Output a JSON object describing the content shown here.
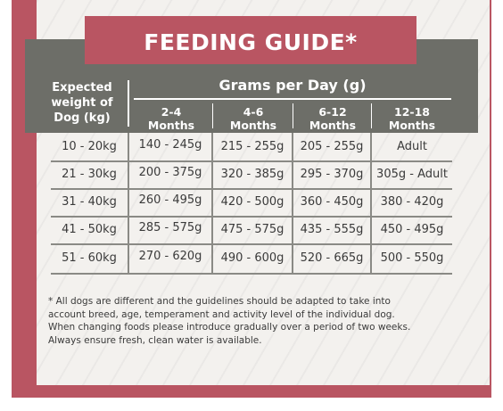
{
  "title": "FEEDING GUIDE*",
  "table": {
    "weight_header_lines": [
      "Expected",
      "weight of",
      "Dog (kg)"
    ],
    "group_header": "Grams per Day (g)",
    "columns": [
      {
        "line1": "2-4",
        "line2": "Months"
      },
      {
        "line1": "4-6",
        "line2": "Months"
      },
      {
        "line1": "6-12",
        "line2": "Months"
      },
      {
        "line1": "12-18",
        "line2": "Months"
      }
    ],
    "rows": [
      {
        "weight": "10 - 20kg",
        "values": [
          "140 - 245g",
          "215 - 255g",
          "205 - 255g",
          "Adult"
        ]
      },
      {
        "weight": "21 - 30kg",
        "values": [
          "200 - 375g",
          "320 - 385g",
          "295 - 370g",
          "305g - Adult"
        ]
      },
      {
        "weight": "31 - 40kg",
        "values": [
          "260 - 495g",
          "420 - 500g",
          "360 - 450g",
          "380 - 420g"
        ]
      },
      {
        "weight": "41 - 50kg",
        "values": [
          "285 - 575g",
          "475 - 575g",
          "435 - 555g",
          "450 - 495g"
        ]
      },
      {
        "weight": "51 - 60kg",
        "values": [
          "270 - 620g",
          "490 - 600g",
          "520 - 665g",
          "500 - 550g"
        ]
      }
    ]
  },
  "note_lines": [
    "* All dogs are different and the guidelines should be adapted to take into",
    "account breed, age, temperament and activity level of the individual dog.",
    "When changing foods please introduce gradually over a period of two weeks.",
    "Always ensure fresh, clean water is available."
  ],
  "colors": {
    "accent": "#b95562",
    "header_gray": "#6d6e68",
    "panel": "#f3f1ee"
  }
}
